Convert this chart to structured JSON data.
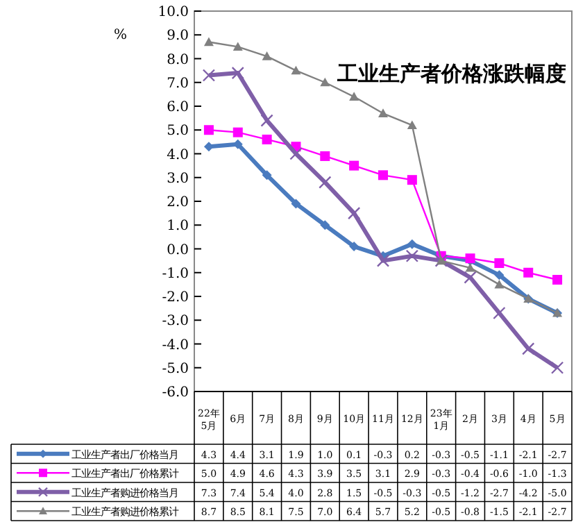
{
  "chart_data": {
    "type": "line",
    "title": "工业生产者价格涨跌幅度",
    "ylabel": "%",
    "categories": [
      "22年5月",
      "6月",
      "7月",
      "8月",
      "9月",
      "10月",
      "11月",
      "12月",
      "23年1月",
      "2月",
      "3月",
      "4月",
      "5月"
    ],
    "series": [
      {
        "name": "工业生产者出厂价格当月",
        "color": "#4a7bbf",
        "marker": "diamond",
        "values": [
          4.3,
          4.4,
          3.1,
          1.9,
          1.0,
          0.1,
          -0.3,
          0.2,
          -0.3,
          -0.5,
          -1.1,
          -2.1,
          -2.7
        ],
        "value_labels": [
          "4.3",
          "4.4",
          "3.1",
          "1.9",
          "1.0",
          "0.1",
          "-0.3",
          "0.2",
          "-0.3",
          "-0.5",
          "-1.1",
          "-2.1",
          "-2.7"
        ]
      },
      {
        "name": "工业生产者出厂价格累计",
        "color": "#ff00ff",
        "marker": "square",
        "values": [
          5.0,
          4.9,
          4.6,
          4.3,
          3.9,
          3.5,
          3.1,
          2.9,
          -0.3,
          -0.4,
          -0.6,
          -1.0,
          -1.3
        ],
        "value_labels": [
          "5.0",
          "4.9",
          "4.6",
          "4.3",
          "3.9",
          "3.5",
          "3.1",
          "2.9",
          "-0.3",
          "-0.4",
          "-0.6",
          "-1.0",
          "-1.3"
        ]
      },
      {
        "name": "工业生产者购进价格当月",
        "color": "#7f5fa8",
        "marker": "cross",
        "values": [
          7.3,
          7.4,
          5.4,
          4.0,
          2.8,
          1.5,
          -0.5,
          -0.3,
          -0.5,
          -1.2,
          -2.7,
          -4.2,
          -5.0
        ],
        "value_labels": [
          "7.3",
          "7.4",
          "5.4",
          "4.0",
          "2.8",
          "1.5",
          "-0.5",
          "-0.3",
          "-0.5",
          "-1.2",
          "-2.7",
          "-4.2",
          "-5.0"
        ]
      },
      {
        "name": "工业生产者购进价格累计",
        "color": "#808080",
        "marker": "triangle",
        "values": [
          8.7,
          8.5,
          8.1,
          7.5,
          7.0,
          6.4,
          5.7,
          5.2,
          -0.5,
          -0.8,
          -1.5,
          -2.1,
          -2.7
        ],
        "value_labels": [
          "8.7",
          "8.5",
          "8.1",
          "7.5",
          "7.0",
          "6.4",
          "5.7",
          "5.2",
          "-0.5",
          "-0.8",
          "-1.5",
          "-2.1",
          "-2.7"
        ]
      }
    ],
    "ylim": [
      -6,
      10
    ],
    "yticks": [
      {
        "value": -6,
        "label": "-6.0"
      },
      {
        "value": -5,
        "label": "-5.0"
      },
      {
        "value": -4,
        "label": "-4.0"
      },
      {
        "value": -3,
        "label": "-3.0"
      },
      {
        "value": -2,
        "label": "-2.0"
      },
      {
        "value": -1,
        "label": "-1.0"
      },
      {
        "value": 0,
        "label": "0.0"
      },
      {
        "value": 1,
        "label": "1.0"
      },
      {
        "value": 2,
        "label": "2.0"
      },
      {
        "value": 3,
        "label": "3.0"
      },
      {
        "value": 4,
        "label": "4.0"
      },
      {
        "value": 5,
        "label": "5.0"
      },
      {
        "value": 6,
        "label": "6.0"
      },
      {
        "value": 7,
        "label": "7.0"
      },
      {
        "value": 8,
        "label": "8.0"
      },
      {
        "value": 9,
        "label": "9.0"
      },
      {
        "value": 10,
        "label": "10.0"
      }
    ],
    "legend": "bottom",
    "grid": false
  }
}
